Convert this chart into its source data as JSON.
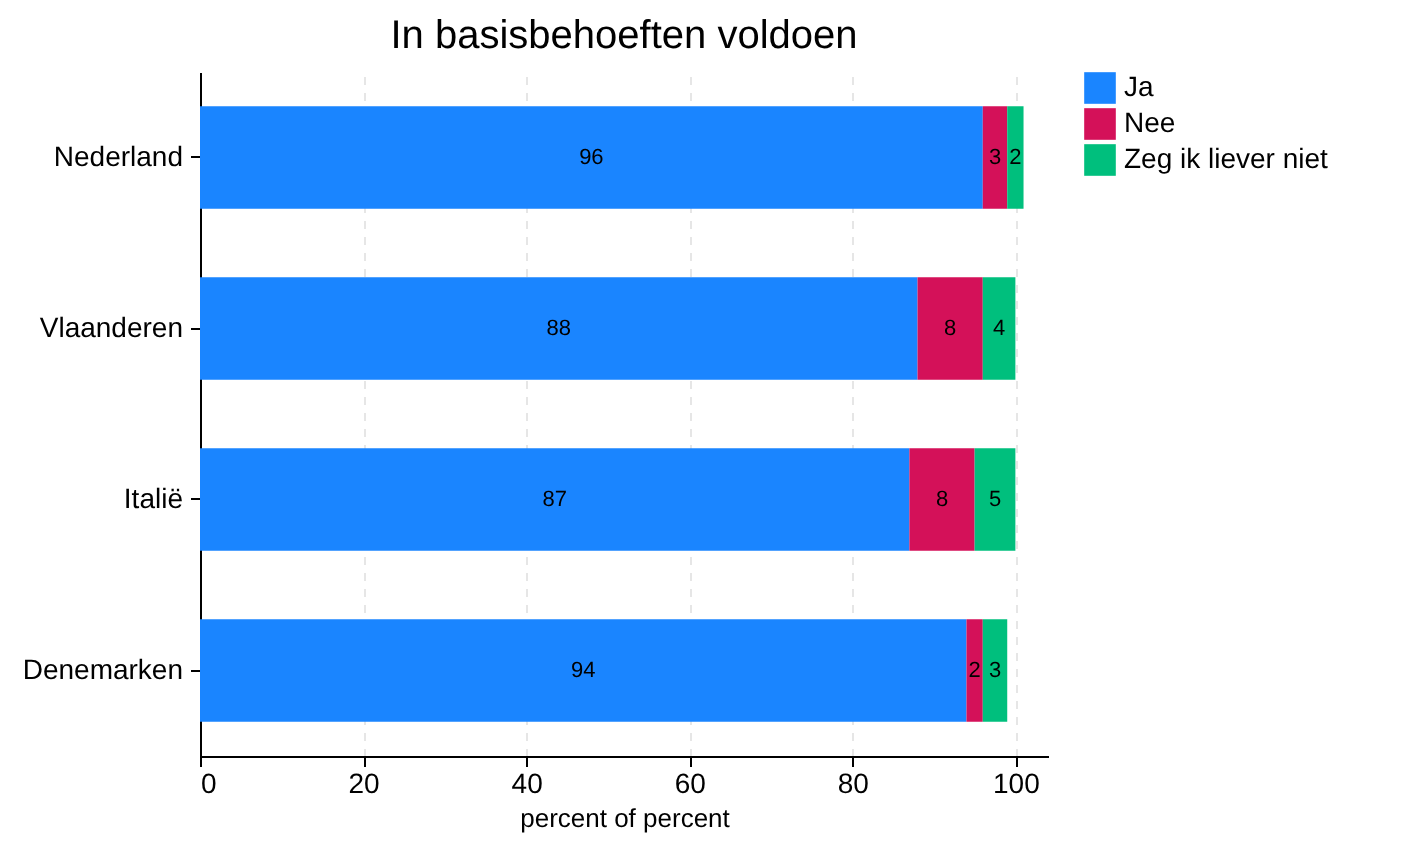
{
  "chart_data": {
    "type": "bar",
    "orientation": "horizontal",
    "stacked": true,
    "title": "In basisbehoeften voldoen",
    "xlabel": "percent of percent",
    "categories": [
      "Nederland",
      "Vlaanderen",
      "Italië",
      "Denemarken"
    ],
    "series": [
      {
        "name": "Ja",
        "color": "#1a85ff",
        "values": [
          96,
          88,
          87,
          94
        ]
      },
      {
        "name": "Nee",
        "color": "#d41159",
        "values": [
          3,
          8,
          8,
          2
        ]
      },
      {
        "name": "Zeg ik liever niet",
        "color": "#00bf7d",
        "values": [
          2,
          4,
          5,
          3
        ]
      }
    ],
    "xlim": [
      0,
      104
    ],
    "xticks": [
      0,
      20,
      40,
      60,
      80,
      100
    ],
    "grid": "x",
    "legend": "right",
    "data_labels": true
  }
}
